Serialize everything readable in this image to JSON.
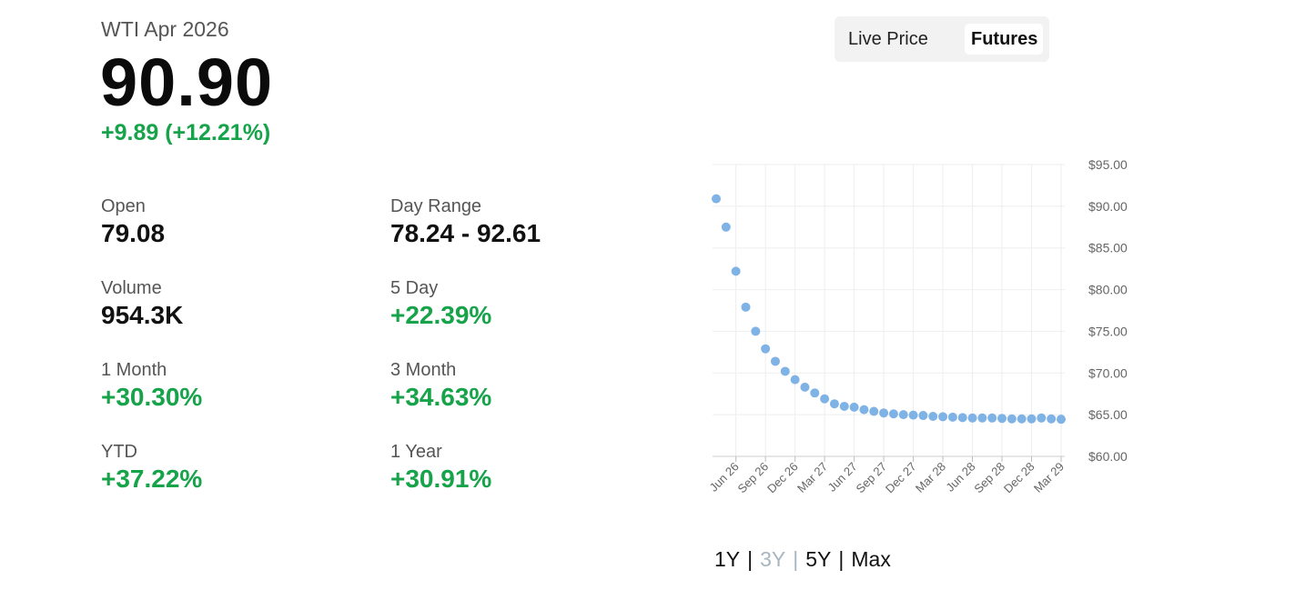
{
  "instrument": {
    "title": "WTI Apr 2026",
    "price": "90.90",
    "change": "+9.89 (+12.21%)"
  },
  "stats": {
    "open": {
      "label": "Open",
      "value": "79.08"
    },
    "day_range": {
      "label": "Day Range",
      "value": "78.24 - 92.61"
    },
    "volume": {
      "label": "Volume",
      "value": "954.3K"
    },
    "five_day": {
      "label": "5 Day",
      "value": "+22.39%"
    },
    "one_month": {
      "label": "1 Month",
      "value": "+30.30%"
    },
    "three_month": {
      "label": "3 Month",
      "value": "+34.63%"
    },
    "ytd": {
      "label": "YTD",
      "value": "+37.22%"
    },
    "one_year": {
      "label": "1 Year",
      "value": "+30.91%"
    }
  },
  "toggle": {
    "live_label": "Live Price",
    "futures_label": "Futures",
    "selected": "Futures"
  },
  "ranges": {
    "options": [
      "1Y",
      "3Y",
      "5Y",
      "Max"
    ],
    "selected": "3Y"
  },
  "colors": {
    "positive": "#17a34a",
    "point": "#7fb2e5",
    "grid": "#eeeeee",
    "muted": "#a7b6c0"
  },
  "chart_data": {
    "type": "scatter",
    "title": "",
    "xlabel": "",
    "ylabel": "",
    "ylim": [
      60,
      95
    ],
    "y_ticks": [
      "$95.00",
      "$90.00",
      "$85.00",
      "$80.00",
      "$75.00",
      "$70.00",
      "$65.00",
      "$60.00"
    ],
    "y_tick_values": [
      95,
      90,
      85,
      80,
      75,
      70,
      65,
      60
    ],
    "x_tick_labels": [
      "Jun 26",
      "Sep 26",
      "Dec 26",
      "Mar 27",
      "Jun 27",
      "Sep 27",
      "Dec 27",
      "Mar 28",
      "Jun 28",
      "Sep 28",
      "Dec 28",
      "Mar 29"
    ],
    "x_tick_months": [
      "2026-06",
      "2026-09",
      "2026-12",
      "2027-03",
      "2027-06",
      "2027-09",
      "2027-12",
      "2028-03",
      "2028-06",
      "2028-09",
      "2028-12",
      "2029-03"
    ],
    "grid": true,
    "legend": "none",
    "series": [
      {
        "x": [
          "2026-04",
          "2026-05",
          "2026-06",
          "2026-07",
          "2026-08",
          "2026-09",
          "2026-10",
          "2026-11",
          "2026-12",
          "2027-01",
          "2027-02",
          "2027-03",
          "2027-04",
          "2027-05",
          "2027-06",
          "2027-07",
          "2027-08",
          "2027-09",
          "2027-10",
          "2027-11",
          "2027-12",
          "2028-01",
          "2028-02",
          "2028-03",
          "2028-04",
          "2028-05",
          "2028-06",
          "2028-07",
          "2028-08",
          "2028-09",
          "2028-10",
          "2028-11",
          "2028-12",
          "2029-01",
          "2029-02",
          "2029-03"
        ],
        "values": [
          90.9,
          87.5,
          82.2,
          77.9,
          75.0,
          72.9,
          71.4,
          70.2,
          69.2,
          68.3,
          67.6,
          66.9,
          66.3,
          66.0,
          65.9,
          65.6,
          65.4,
          65.2,
          65.1,
          65.0,
          64.95,
          64.9,
          64.8,
          64.75,
          64.7,
          64.65,
          64.6,
          64.6,
          64.6,
          64.55,
          64.5,
          64.5,
          64.5,
          64.6,
          64.5,
          64.45
        ]
      }
    ]
  }
}
